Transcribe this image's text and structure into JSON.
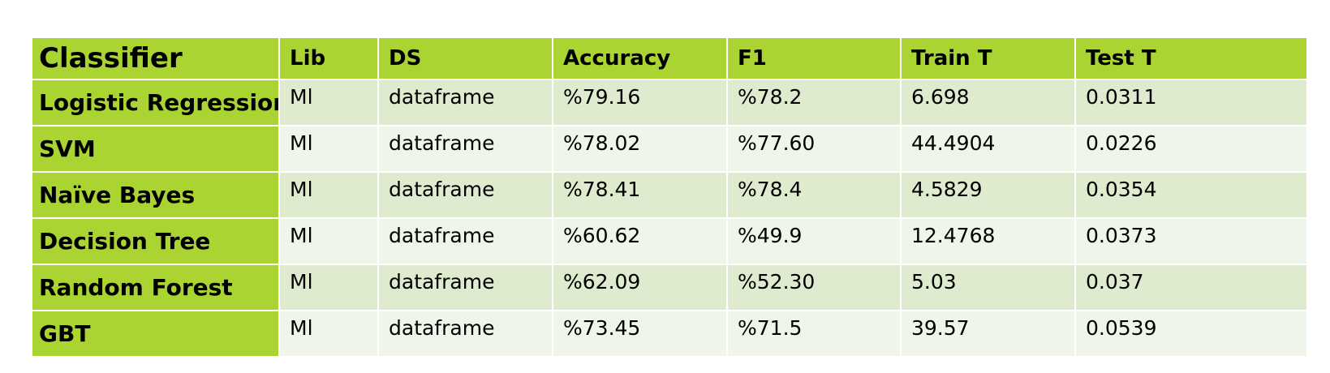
{
  "table": {
    "headers": [
      "Classifier",
      "Lib",
      "DS",
      "Accuracy",
      "F1",
      "Train T",
      "Test T"
    ],
    "rows": [
      {
        "classifier": "Logistic Regression",
        "lib": "Ml",
        "ds": "dataframe",
        "accuracy": "%79.16",
        "f1": "%78.2",
        "train_t": "6.698",
        "test_t": "0.0311"
      },
      {
        "classifier": "SVM",
        "lib": "Ml",
        "ds": "dataframe",
        "accuracy": "%78.02",
        "f1": "%77.60",
        "train_t": "44.4904",
        "test_t": "0.0226"
      },
      {
        "classifier": "Naïve Bayes",
        "lib": "Ml",
        "ds": "dataframe",
        "accuracy": "%78.41",
        "f1": "%78.4",
        "train_t": "4.5829",
        "test_t": "0.0354"
      },
      {
        "classifier": "Decision Tree",
        "lib": "Ml",
        "ds": "dataframe",
        "accuracy": "%60.62",
        "f1": "%49.9",
        "train_t": "12.4768",
        "test_t": "0.0373"
      },
      {
        "classifier": "Random Forest",
        "lib": "Ml",
        "ds": "dataframe",
        "accuracy": "%62.09",
        "f1": "%52.30",
        "train_t": "5.03",
        "test_t": "0.037"
      },
      {
        "classifier": "GBT",
        "lib": "Ml",
        "ds": "dataframe",
        "accuracy": "%73.45",
        "f1": "%71.5",
        "train_t": "39.57",
        "test_t": "0.0539"
      }
    ]
  },
  "colors": {
    "header_green": "#aad432",
    "row_odd": "#dfebcf",
    "row_even": "#eff5e9",
    "border": "#ffffff"
  }
}
